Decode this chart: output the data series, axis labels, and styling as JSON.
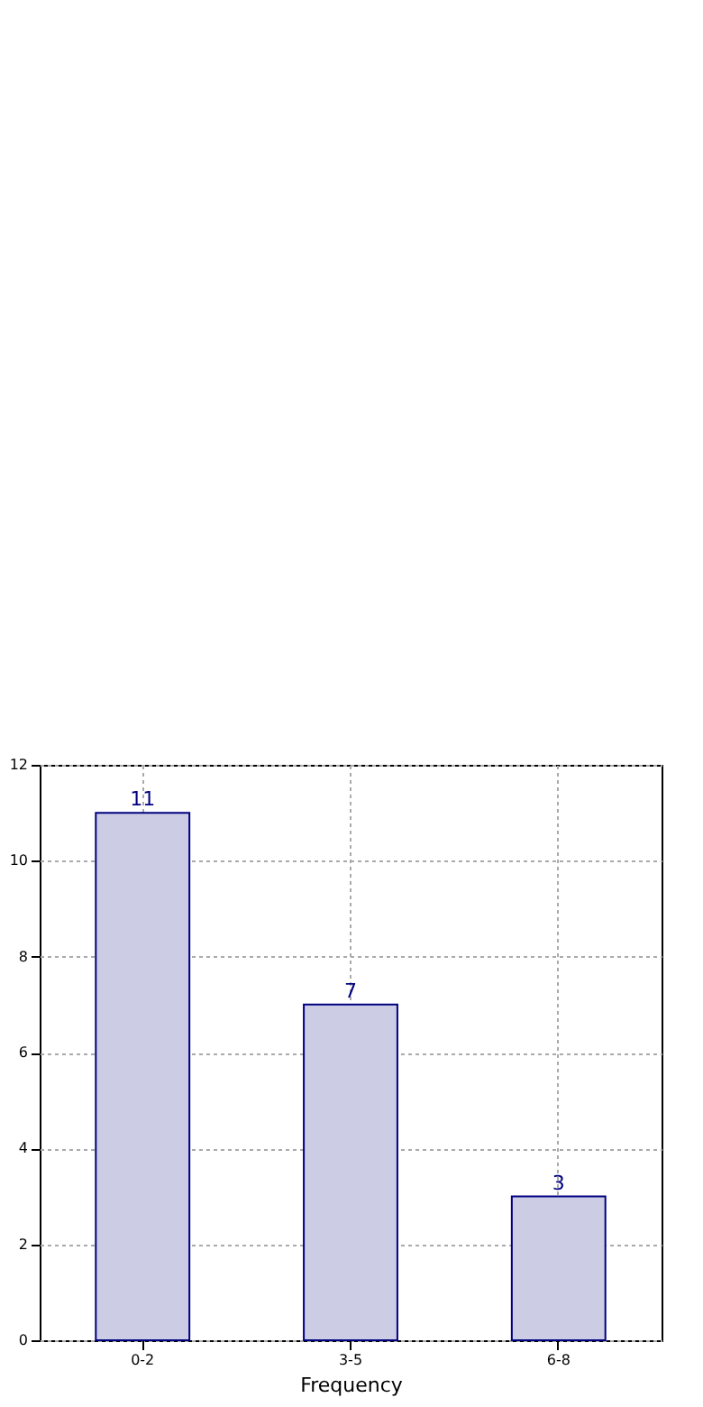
{
  "chart_data": {
    "type": "bar",
    "xlabel": "Frequency",
    "categories": [
      "0-2",
      "3-5",
      "6-8"
    ],
    "values": [
      11,
      7,
      3
    ],
    "color": "#cccce4",
    "ylim": [
      0,
      12
    ],
    "yticks": [
      0,
      2,
      4,
      6,
      8,
      10,
      12
    ],
    "grid": true,
    "data_labels": true
  }
}
